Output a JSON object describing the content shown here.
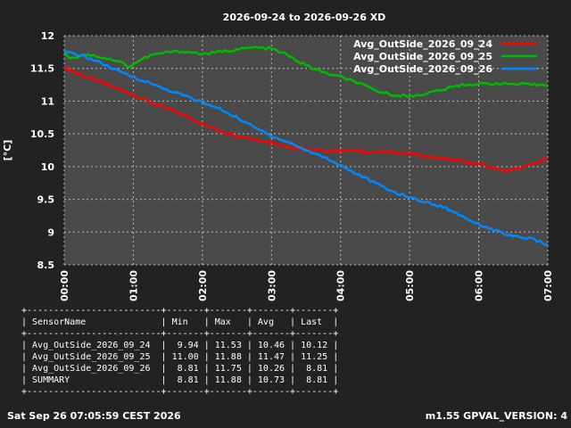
{
  "chart_data": {
    "type": "line",
    "title": "2026-09-24 to 2026-09-26 XD",
    "xlabel": "",
    "ylabel": "[°C]",
    "x_ticks": [
      "00:00",
      "01:00",
      "02:00",
      "03:00",
      "04:00",
      "05:00",
      "06:00",
      "07:00"
    ],
    "x_range_hours": [
      0,
      7
    ],
    "y_ticks": [
      "8.5",
      "9",
      "9.5",
      "10",
      "10.5",
      "11",
      "11.5",
      "12"
    ],
    "ylim": [
      8.5,
      12
    ],
    "grid": true,
    "legend_position": "top-right",
    "colors": {
      "background": "#222222",
      "plot_area": "#4a4a4a",
      "grid": "#bbbbbb"
    },
    "series": [
      {
        "name": "Avg_OutSide_2026_09_24",
        "color": "#ff0000",
        "points": [
          [
            0,
            11.52
          ],
          [
            0.25,
            11.4
          ],
          [
            0.5,
            11.3
          ],
          [
            0.75,
            11.2
          ],
          [
            1,
            11.1
          ],
          [
            1.25,
            10.98
          ],
          [
            1.5,
            10.88
          ],
          [
            1.75,
            10.78
          ],
          [
            2,
            10.65
          ],
          [
            2.25,
            10.55
          ],
          [
            2.5,
            10.47
          ],
          [
            2.75,
            10.42
          ],
          [
            3,
            10.37
          ],
          [
            3.25,
            10.3
          ],
          [
            3.5,
            10.26
          ],
          [
            3.75,
            10.24
          ],
          [
            4,
            10.25
          ],
          [
            4.25,
            10.24
          ],
          [
            4.5,
            10.22
          ],
          [
            4.75,
            10.22
          ],
          [
            5,
            10.2
          ],
          [
            5.25,
            10.15
          ],
          [
            5.5,
            10.12
          ],
          [
            5.75,
            10.08
          ],
          [
            6,
            10.04
          ],
          [
            6.25,
            9.97
          ],
          [
            6.4,
            9.94
          ],
          [
            6.6,
            9.98
          ],
          [
            6.8,
            10.05
          ],
          [
            7,
            10.12
          ]
        ]
      },
      {
        "name": "Avg_OutSide_2026_09_25",
        "color": "#00bb00",
        "points": [
          [
            0,
            11.75
          ],
          [
            0.1,
            11.65
          ],
          [
            0.3,
            11.72
          ],
          [
            0.5,
            11.68
          ],
          [
            0.7,
            11.63
          ],
          [
            0.85,
            11.58
          ],
          [
            0.95,
            11.52
          ],
          [
            1.05,
            11.6
          ],
          [
            1.25,
            11.7
          ],
          [
            1.5,
            11.75
          ],
          [
            1.75,
            11.76
          ],
          [
            2,
            11.72
          ],
          [
            2.25,
            11.75
          ],
          [
            2.5,
            11.79
          ],
          [
            2.75,
            11.82
          ],
          [
            3,
            11.8
          ],
          [
            3.2,
            11.72
          ],
          [
            3.4,
            11.6
          ],
          [
            3.6,
            11.5
          ],
          [
            3.8,
            11.42
          ],
          [
            4,
            11.37
          ],
          [
            4.25,
            11.28
          ],
          [
            4.5,
            11.16
          ],
          [
            4.75,
            11.1
          ],
          [
            5,
            11.07
          ],
          [
            5.25,
            11.12
          ],
          [
            5.5,
            11.18
          ],
          [
            5.75,
            11.25
          ],
          [
            6,
            11.26
          ],
          [
            6.25,
            11.27
          ],
          [
            6.5,
            11.26
          ],
          [
            6.75,
            11.25
          ],
          [
            7,
            11.25
          ]
        ]
      },
      {
        "name": "Avg_OutSide_2026_09_26",
        "color": "#0088ff",
        "points": [
          [
            0,
            11.75
          ],
          [
            0.25,
            11.7
          ],
          [
            0.5,
            11.6
          ],
          [
            0.75,
            11.47
          ],
          [
            1,
            11.37
          ],
          [
            1.25,
            11.27
          ],
          [
            1.5,
            11.17
          ],
          [
            1.75,
            11.08
          ],
          [
            2,
            10.98
          ],
          [
            2.25,
            10.88
          ],
          [
            2.5,
            10.75
          ],
          [
            2.75,
            10.6
          ],
          [
            3,
            10.47
          ],
          [
            3.25,
            10.37
          ],
          [
            3.5,
            10.25
          ],
          [
            3.75,
            10.15
          ],
          [
            4,
            10.02
          ],
          [
            4.25,
            9.88
          ],
          [
            4.5,
            9.75
          ],
          [
            4.75,
            9.62
          ],
          [
            5,
            9.53
          ],
          [
            5.25,
            9.45
          ],
          [
            5.5,
            9.38
          ],
          [
            5.75,
            9.25
          ],
          [
            6,
            9.12
          ],
          [
            6.25,
            9.02
          ],
          [
            6.5,
            8.93
          ],
          [
            6.75,
            8.9
          ],
          [
            7,
            8.81
          ]
        ]
      }
    ]
  },
  "summary_table": {
    "separator": "+-------------------------+-------+-------+-------+-------+",
    "header": "| SensorName              | Min   | Max   | Avg   | Last  |",
    "rows": [
      "| Avg_OutSide_2026_09_24  |  9.94 | 11.53 | 10.46 | 10.12 |",
      "| Avg_OutSide_2026_09_25  | 11.00 | 11.88 | 11.47 | 11.25 |",
      "| Avg_OutSide_2026_09_26  |  8.81 | 11.75 | 10.26 |  8.81 |",
      "| SUMMARY                 |  8.81 | 11.88 | 10.73 |  8.81 |"
    ]
  },
  "footer": {
    "timestamp": "Sat Sep 26 07:05:59 CEST 2026",
    "version": "m1.55 GPVAL_VERSION: 4"
  }
}
